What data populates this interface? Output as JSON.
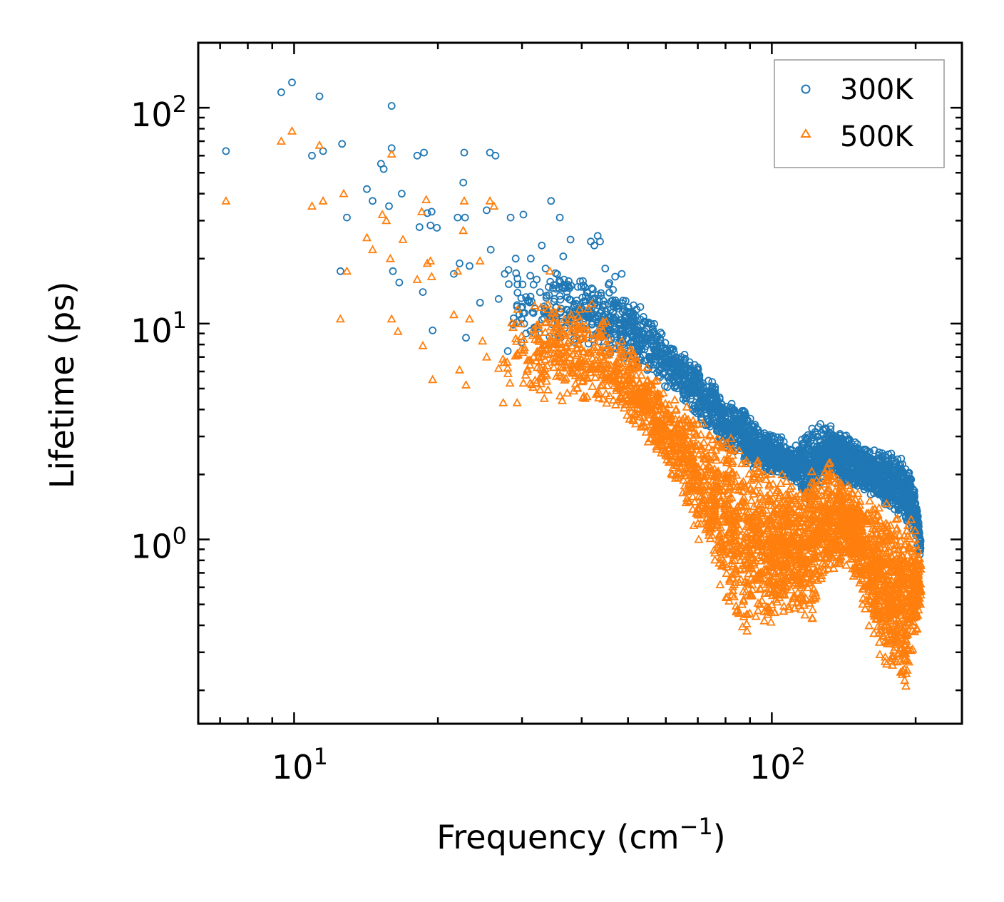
{
  "chart_data": {
    "type": "scatter",
    "xscale": "log",
    "yscale": "log",
    "xlabel": "Frequency (cm",
    "xlabel_sup": "−1",
    "xlabel_end": ")",
    "ylabel": "Lifetime (ps)",
    "xlim": [
      6.3,
      250
    ],
    "ylim": [
      0.14,
      200
    ],
    "x_ticks": [
      {
        "value": 10,
        "base": "10",
        "exp": "1"
      },
      {
        "value": 100,
        "base": "10",
        "exp": "2"
      }
    ],
    "y_ticks": [
      {
        "value": 1,
        "base": "10",
        "exp": "0"
      },
      {
        "value": 10,
        "base": "10",
        "exp": "1"
      },
      {
        "value": 100,
        "base": "10",
        "exp": "2"
      }
    ],
    "legend_position": "top-right",
    "series": [
      {
        "name": "300K",
        "color": "#1f77b4",
        "marker": "circle",
        "sparse_points": [
          [
            7.2,
            63
          ],
          [
            9.4,
            118
          ],
          [
            9.9,
            131
          ],
          [
            10.9,
            60
          ],
          [
            11.3,
            113
          ],
          [
            11.5,
            63
          ],
          [
            12.6,
            68
          ],
          [
            12.9,
            31
          ],
          [
            12.5,
            17.5
          ],
          [
            14.2,
            42
          ],
          [
            14.6,
            37
          ],
          [
            15.2,
            55
          ],
          [
            15.4,
            52
          ],
          [
            15.8,
            35
          ],
          [
            16.0,
            102
          ],
          [
            16.0,
            65
          ],
          [
            16.1,
            17.5
          ],
          [
            16.6,
            15.5
          ],
          [
            16.8,
            40
          ],
          [
            18.1,
            60
          ],
          [
            18.3,
            28
          ],
          [
            18.6,
            14
          ],
          [
            18.7,
            62
          ],
          [
            19.0,
            32.5
          ],
          [
            19.3,
            28.5
          ],
          [
            19.4,
            33
          ],
          [
            19.5,
            9.3
          ],
          [
            19.9,
            27.8
          ],
          [
            21.6,
            17
          ],
          [
            22.0,
            31
          ],
          [
            22.2,
            19
          ],
          [
            22.6,
            45
          ],
          [
            22.7,
            62
          ],
          [
            22.8,
            31
          ],
          [
            22.9,
            8.6
          ],
          [
            23.3,
            18.5
          ],
          [
            24.5,
            12.5
          ],
          [
            25.3,
            33.5
          ],
          [
            25.7,
            62
          ],
          [
            26.4,
            60
          ],
          [
            25.8,
            22
          ],
          [
            26.8,
            13
          ],
          [
            27.6,
            17
          ],
          [
            28.4,
            31
          ],
          [
            29.1,
            20
          ],
          [
            30.2,
            32
          ],
          [
            30.6,
            9
          ],
          [
            31.3,
            20
          ],
          [
            32.2,
            16
          ],
          [
            33.0,
            23
          ],
          [
            33.6,
            18
          ],
          [
            34.5,
            37
          ],
          [
            35.1,
            13
          ],
          [
            36.0,
            31
          ],
          [
            36.6,
            20.5
          ],
          [
            37.9,
            24.5
          ],
          [
            38.0,
            15
          ],
          [
            41.0,
            14
          ],
          [
            41.8,
            24
          ],
          [
            42.5,
            23
          ],
          [
            43.2,
            25.5
          ],
          [
            43.7,
            24
          ],
          [
            44.8,
            18
          ],
          [
            47.0,
            16.5
          ],
          [
            48.5,
            17
          ]
        ],
        "dense_band": {
          "x_range": [
            27,
            205
          ],
          "upper": [
            [
              27,
              23
            ],
            [
              35,
              19
            ],
            [
              45,
              16.5
            ],
            [
              50,
              14
            ],
            [
              60,
              9
            ],
            [
              70,
              6.5
            ],
            [
              80,
              4.6
            ],
            [
              88,
              4.2
            ],
            [
              95,
              3.3
            ],
            [
              105,
              3.0
            ],
            [
              112,
              2.8
            ],
            [
              118,
              3.1
            ],
            [
              122,
              3.6
            ],
            [
              130,
              3.5
            ],
            [
              140,
              3.2
            ],
            [
              150,
              2.9
            ],
            [
              165,
              2.6
            ],
            [
              180,
              2.6
            ],
            [
              192,
              2.3
            ],
            [
              200,
              1.7
            ],
            [
              205,
              1.0
            ]
          ],
          "lower": [
            [
              27,
              7
            ],
            [
              35,
              8
            ],
            [
              45,
              7
            ],
            [
              50,
              6.5
            ],
            [
              60,
              5
            ],
            [
              70,
              3.6
            ],
            [
              80,
              2.6
            ],
            [
              90,
              2.1
            ],
            [
              100,
              1.95
            ],
            [
              110,
              1.85
            ],
            [
              118,
              1.55
            ],
            [
              121,
              1.4
            ],
            [
              130,
              2.0
            ],
            [
              140,
              1.8
            ],
            [
              160,
              1.6
            ],
            [
              175,
              1.4
            ],
            [
              190,
              1.2
            ],
            [
              200,
              0.95
            ],
            [
              205,
              0.82
            ]
          ],
          "count": 2600
        }
      },
      {
        "name": "500K",
        "color": "#ff7f0e",
        "marker": "triangle",
        "sparse_points": [
          [
            7.2,
            37
          ],
          [
            9.4,
            70
          ],
          [
            9.9,
            78
          ],
          [
            10.9,
            35
          ],
          [
            11.3,
            67
          ],
          [
            11.5,
            37
          ],
          [
            12.5,
            10.5
          ],
          [
            12.7,
            40
          ],
          [
            12.9,
            17.5
          ],
          [
            14.2,
            25
          ],
          [
            14.6,
            22
          ],
          [
            15.3,
            32
          ],
          [
            15.6,
            30
          ],
          [
            15.9,
            20
          ],
          [
            16.0,
            61
          ],
          [
            16.0,
            10.5
          ],
          [
            16.5,
            9.2
          ],
          [
            16.9,
            24.5
          ],
          [
            18.1,
            16
          ],
          [
            18.5,
            33
          ],
          [
            18.6,
            7.9
          ],
          [
            18.9,
            37.5
          ],
          [
            19.0,
            19
          ],
          [
            19.3,
            19.5
          ],
          [
            19.4,
            16.5
          ],
          [
            19.5,
            5.5
          ],
          [
            21.6,
            11
          ],
          [
            22.0,
            17.5
          ],
          [
            22.2,
            6.1
          ],
          [
            22.6,
            27
          ],
          [
            22.7,
            37
          ],
          [
            22.9,
            5.2
          ],
          [
            23.3,
            10.5
          ],
          [
            24.5,
            19.5
          ],
          [
            24.8,
            8.3
          ],
          [
            25.3,
            7.0
          ],
          [
            25.7,
            37
          ],
          [
            26.2,
            35
          ],
          [
            26.8,
            6.2
          ],
          [
            27.4,
            4.3
          ],
          [
            28.3,
            5.3
          ],
          [
            29.3,
            4.3
          ],
          [
            30.2,
            5.3
          ],
          [
            31.2,
            5.3
          ],
          [
            31.8,
            9
          ],
          [
            32.5,
            7
          ],
          [
            33.4,
            4.5
          ],
          [
            34.3,
            17.5
          ],
          [
            35.3,
            9.5
          ],
          [
            36.4,
            4.4
          ],
          [
            38.0,
            11
          ],
          [
            39.4,
            9.5
          ],
          [
            40.5,
            8.5
          ]
        ],
        "dense_band": {
          "x_range": [
            27,
            205
          ],
          "upper": [
            [
              27,
              13
            ],
            [
              35,
              13
            ],
            [
              42,
              12.5
            ],
            [
              45,
              11
            ],
            [
              50,
              8.5
            ],
            [
              55,
              6.5
            ],
            [
              62,
              4.8
            ],
            [
              70,
              3.8
            ],
            [
              78,
              3.2
            ],
            [
              85,
              2.9
            ],
            [
              92,
              2.6
            ],
            [
              100,
              2.3
            ],
            [
              110,
              2.1
            ],
            [
              115,
              1.9
            ],
            [
              122,
              2.3
            ],
            [
              130,
              2.4
            ],
            [
              140,
              2.1
            ],
            [
              150,
              1.8
            ],
            [
              165,
              1.6
            ],
            [
              180,
              1.5
            ],
            [
              192,
              1.4
            ],
            [
              200,
              1.1
            ],
            [
              205,
              0.8
            ]
          ],
          "lower": [
            [
              27,
              4.5
            ],
            [
              35,
              4.5
            ],
            [
              42,
              4
            ],
            [
              50,
              3.3
            ],
            [
              58,
              2.3
            ],
            [
              65,
              1.5
            ],
            [
              70,
              0.95
            ],
            [
              75,
              0.7
            ],
            [
              82,
              0.45
            ],
            [
              88,
              0.32
            ],
            [
              92,
              0.42
            ],
            [
              100,
              0.38
            ],
            [
              110,
              0.45
            ],
            [
              115,
              0.4
            ],
            [
              120,
              0.36
            ],
            [
              125,
              0.55
            ],
            [
              135,
              0.7
            ],
            [
              145,
              0.75
            ],
            [
              152,
              0.55
            ],
            [
              160,
              0.35
            ],
            [
              170,
              0.25
            ],
            [
              178,
              0.22
            ],
            [
              185,
              0.19
            ],
            [
              192,
              0.2
            ],
            [
              198,
              0.3
            ],
            [
              205,
              0.45
            ]
          ],
          "count": 3200
        }
      }
    ]
  }
}
